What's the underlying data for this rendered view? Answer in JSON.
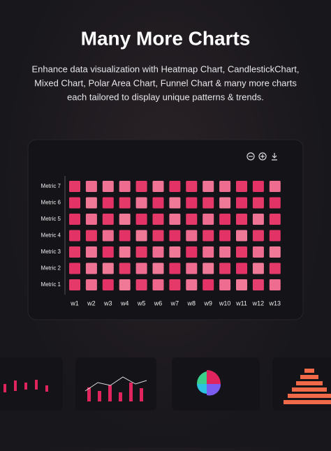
{
  "header": {
    "title": "Many More Charts",
    "description": [
      "Enhance data visualization with Heatmap Chart, CandlestickChart,",
      "Mixed Chart, Polar Area Chart, Funnel Chart & many more charts",
      "each tailored to display unique patterns & trends."
    ]
  },
  "chart_data": {
    "type": "heatmap",
    "categories": [
      "w1",
      "w2",
      "w3",
      "w4",
      "w5",
      "w6",
      "w7",
      "w8",
      "w9",
      "w10",
      "w11",
      "w12",
      "w13"
    ],
    "series": [
      {
        "name": "Metric 1",
        "values": [
          80,
          40,
          85,
          30,
          75,
          45,
          80,
          35,
          85,
          40,
          30,
          75,
          40
        ]
      },
      {
        "name": "Metric 2",
        "values": [
          85,
          35,
          30,
          80,
          40,
          30,
          85,
          40,
          30,
          80,
          85,
          30,
          80
        ]
      },
      {
        "name": "Metric 3",
        "values": [
          80,
          35,
          85,
          30,
          80,
          40,
          30,
          85,
          40,
          35,
          80,
          40,
          30
        ]
      },
      {
        "name": "Metric 4",
        "values": [
          85,
          80,
          40,
          85,
          30,
          80,
          85,
          40,
          80,
          85,
          30,
          80,
          85
        ]
      },
      {
        "name": "Metric 5",
        "values": [
          85,
          40,
          80,
          30,
          85,
          80,
          35,
          80,
          40,
          85,
          80,
          35,
          80
        ]
      },
      {
        "name": "Metric 6",
        "values": [
          85,
          30,
          85,
          80,
          35,
          85,
          30,
          85,
          80,
          30,
          85,
          80,
          85
        ]
      },
      {
        "name": "Metric 7",
        "values": [
          80,
          40,
          35,
          40,
          80,
          35,
          85,
          80,
          35,
          40,
          80,
          85,
          40
        ]
      }
    ],
    "zlim": [
      0,
      100
    ],
    "color_scale": [
      "#f7a0b4",
      "#e01f58"
    ]
  }
}
